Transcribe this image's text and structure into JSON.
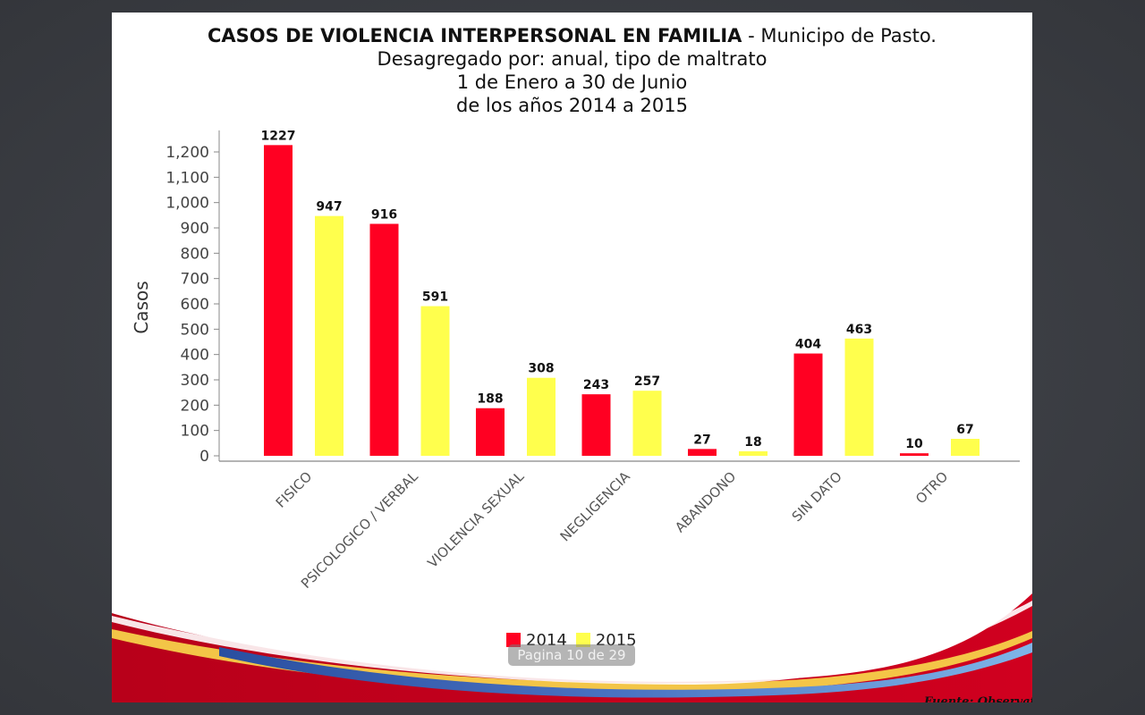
{
  "viewer": {
    "page_indicator": "Pagina 10 de 29"
  },
  "slide": {
    "title_bold": "CASOS DE VIOLENCIA INTERPERSONAL EN FAMILIA",
    "title_rest": " - Municipo de Pasto.",
    "subtitle_1": "Desagregado por: anual, tipo de maltrato",
    "subtitle_2": "1 de Enero a 30 de Junio",
    "subtitle_3": "de los años 2014 a 2015",
    "source": "Fuente: Observatorio del Delito."
  },
  "colors": {
    "series_2014": "#ff0022",
    "series_2015": "#ffff4d",
    "axis": "#888888"
  },
  "chart_data": {
    "type": "bar",
    "title": "CASOS DE VIOLENCIA INTERPERSONAL EN FAMILIA - Municipo de Pasto.",
    "xlabel": "",
    "ylabel": "Casos",
    "ylim": [
      0,
      1250
    ],
    "yticks": [
      0,
      100,
      200,
      300,
      400,
      500,
      600,
      700,
      800,
      900,
      1000,
      1100,
      1200
    ],
    "ytick_labels": [
      "0",
      "100",
      "200",
      "300",
      "400",
      "500",
      "600",
      "700",
      "800",
      "900",
      "1,000",
      "1,100",
      "1,200"
    ],
    "categories": [
      "FISICO",
      "PSICOLOGICO / VERBAL",
      "VIOLENCIA SEXUAL",
      "NEGLIGENCIA",
      "ABANDONO",
      "SIN DATO",
      "OTRO"
    ],
    "series": [
      {
        "name": "2014",
        "values": [
          1227,
          916,
          188,
          243,
          27,
          404,
          10
        ]
      },
      {
        "name": "2015",
        "values": [
          947,
          591,
          308,
          257,
          18,
          463,
          67
        ]
      }
    ],
    "grid": false,
    "legend_position": "bottom"
  }
}
